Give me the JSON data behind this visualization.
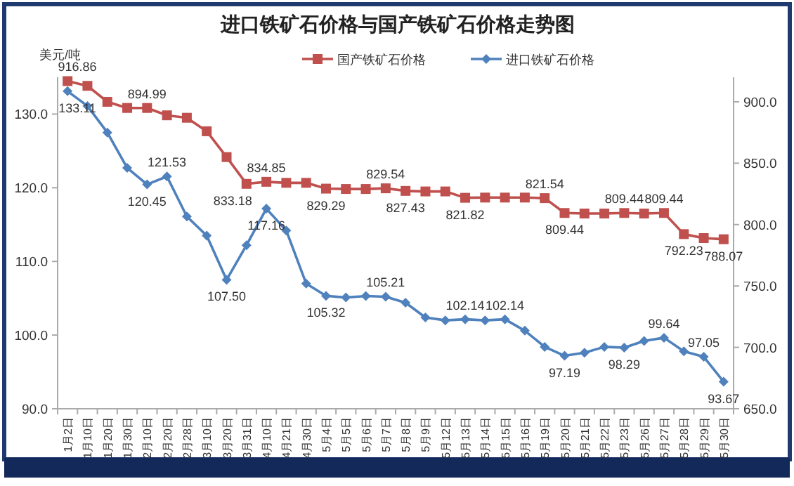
{
  "chart_data": {
    "type": "line",
    "title": "进口铁矿石价格与国产铁矿石价格走势图",
    "ylabel": "美元/吨",
    "categories": [
      "1月2日",
      "1月10日",
      "1月20日",
      "1月30日",
      "2月10日",
      "2月20日",
      "2月28日",
      "3月10日",
      "3月20日",
      "3月31日",
      "4月10日",
      "4月21日",
      "4月30日",
      "5月4日",
      "5月5日",
      "5月6日",
      "5月7日",
      "5月8日",
      "5月9日",
      "5月12日",
      "5月13日",
      "5月14日",
      "5月15日",
      "5月16日",
      "5月19日",
      "5月20日",
      "5月21日",
      "5月22日",
      "5月23日",
      "5月26日",
      "5月27日",
      "5月28日",
      "5月29日",
      "5月30日"
    ],
    "series": [
      {
        "name": "国产铁矿石价格",
        "color": "#c0504d",
        "marker": "square",
        "axis": "y2",
        "values": [
          916.86,
          913,
          900,
          895,
          894.99,
          889,
          887,
          876,
          855,
          833.18,
          834.85,
          834,
          834,
          829.29,
          829,
          829,
          829.54,
          827.43,
          827,
          827,
          821.82,
          822,
          822,
          822,
          821.54,
          809.44,
          809,
          809,
          809.44,
          809,
          809.44,
          792.23,
          789,
          788.07
        ],
        "value_labels": [
          "916.86",
          null,
          null,
          null,
          "894.99",
          null,
          null,
          null,
          null,
          "833.18",
          "834.85",
          null,
          null,
          "829.29",
          null,
          null,
          "829.54",
          "827.43",
          null,
          null,
          "821.82",
          null,
          null,
          null,
          "821.54",
          "809.44",
          null,
          null,
          "809.44",
          null,
          "809.44",
          "792.23",
          null,
          "788.07"
        ]
      },
      {
        "name": "进口铁矿石价格",
        "color": "#4f81bd",
        "marker": "diamond",
        "values": [
          133.11,
          131.1,
          127.5,
          122.7,
          120.45,
          121.53,
          116.1,
          113.5,
          107.5,
          112.2,
          117.16,
          114.2,
          107.0,
          105.32,
          105.1,
          105.3,
          105.21,
          104.4,
          102.4,
          102.0,
          102.14,
          102.0,
          102.14,
          100.6,
          98.4,
          97.19,
          97.6,
          98.4,
          98.29,
          99.2,
          99.64,
          97.8,
          97.05,
          93.67
        ],
        "value_labels": [
          "133.11",
          null,
          null,
          null,
          "120.45",
          "121.53",
          null,
          null,
          "107.50",
          null,
          "117.16",
          null,
          null,
          "105.32",
          null,
          null,
          "105.21",
          null,
          null,
          null,
          "102.14",
          null,
          "102.14",
          null,
          null,
          "97.19",
          null,
          null,
          "98.29",
          null,
          "99.64",
          null,
          "97.05",
          "93.67"
        ]
      }
    ],
    "ylim": [
      90,
      135
    ],
    "yticks": [
      {
        "value": 90,
        "label": "90.0"
      },
      {
        "value": 100,
        "label": "100.0"
      },
      {
        "value": 110,
        "label": "110.0"
      },
      {
        "value": 120,
        "label": "120.0"
      },
      {
        "value": 130,
        "label": "130.0"
      }
    ],
    "y2lim": [
      650,
      920
    ],
    "y2ticks": [
      {
        "value": 650,
        "label": "650.0"
      },
      {
        "value": 700,
        "label": "700.0"
      },
      {
        "value": 750,
        "label": "750.0"
      },
      {
        "value": 800,
        "label": "800.0"
      },
      {
        "value": 850,
        "label": "850.0"
      },
      {
        "value": 900,
        "label": "900.0"
      }
    ],
    "legend": "top",
    "grid": false,
    "line_style": "solid"
  }
}
